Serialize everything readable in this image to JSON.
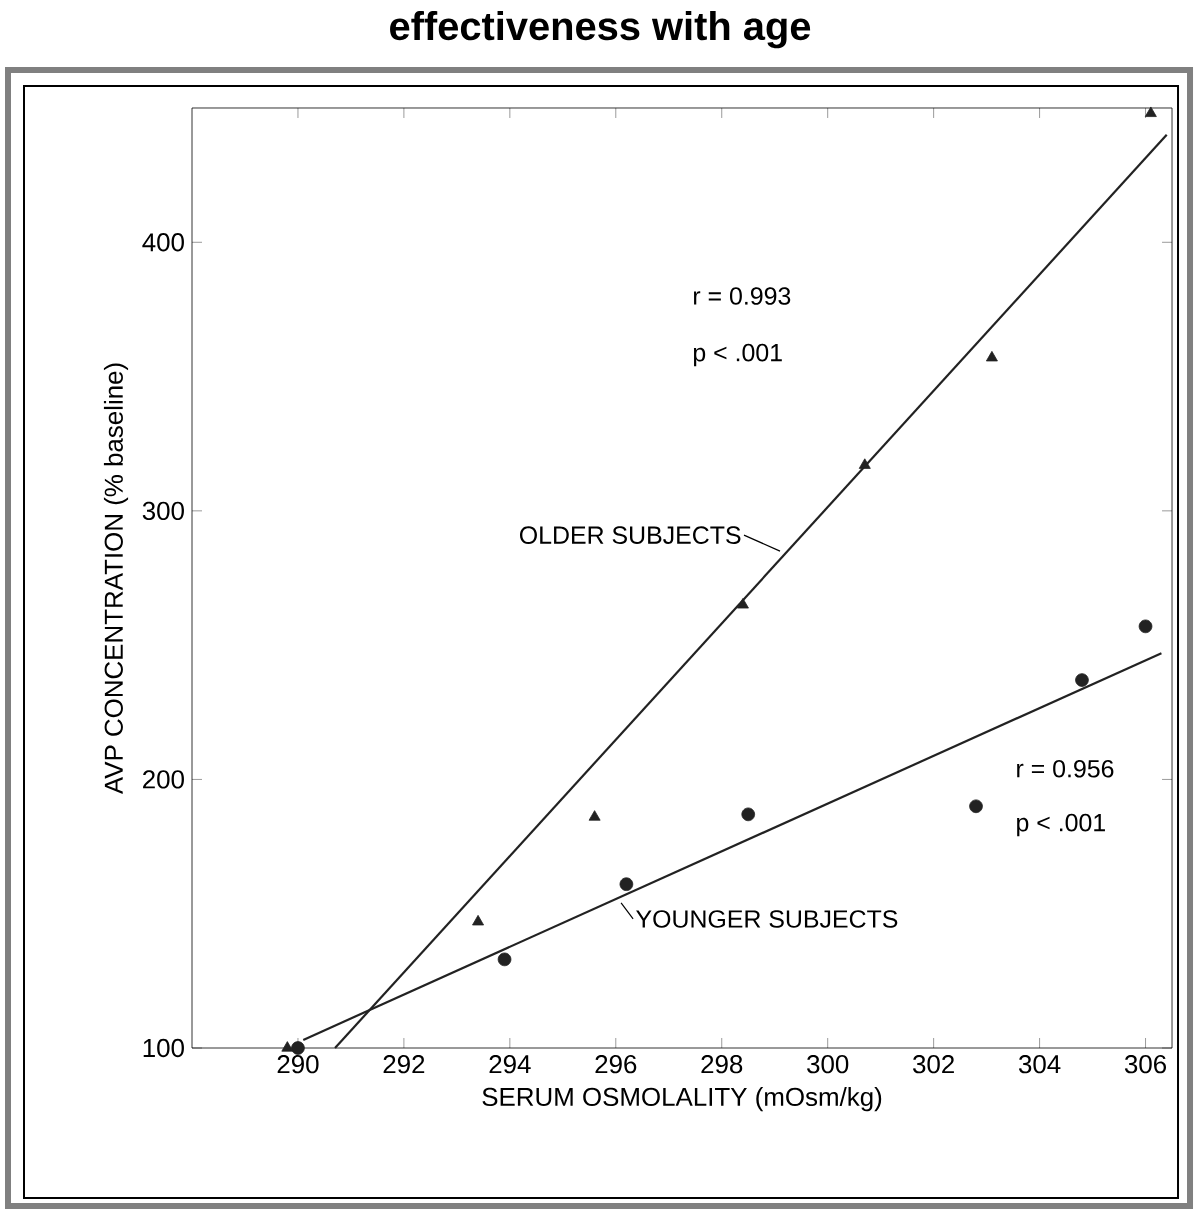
{
  "chart_data": {
    "type": "scatter",
    "title": "effectiveness with age",
    "xlabel": "SERUM OSMOLALITY (mOsm/kg)",
    "ylabel": "AVP CONCENTRATION (% baseline)",
    "xlim": [
      288,
      306.5
    ],
    "ylim": [
      100,
      450
    ],
    "xticks": [
      290,
      292,
      294,
      296,
      298,
      300,
      302,
      304,
      306
    ],
    "yticks": [
      100,
      200,
      300,
      400
    ],
    "grid": false,
    "series": [
      {
        "marker": "triangle",
        "color": "#222222",
        "x": [
          289.8,
          293.4,
          295.6,
          298.4,
          300.7,
          303.1,
          306.1
        ],
        "values": [
          100,
          147,
          186,
          265,
          317,
          357,
          448
        ]
      },
      {
        "marker": "circle",
        "color": "#222222",
        "x": [
          290.0,
          293.9,
          296.2,
          298.5,
          302.8,
          304.8,
          306.0
        ],
        "values": [
          100,
          133,
          161,
          187,
          190,
          237,
          257
        ]
      },
      {
        "type": "line",
        "marker": "none",
        "color": "#222222",
        "x": [
          290.7,
          306.4
        ],
        "values": [
          100,
          440
        ]
      },
      {
        "type": "line",
        "marker": "none",
        "color": "#222222",
        "x": [
          290.1,
          306.3
        ],
        "values": [
          103,
          247
        ]
      }
    ],
    "annotations": [
      "r = 0.993",
      "p  < .001",
      {
        "text": "OLDER SUBJECTS",
        "x": 299.1,
        "y": 285
      },
      "r = 0.956",
      "p  < .001",
      {
        "text": "YOUNGER SUBJECTS",
        "x": 296.1,
        "y": 154
      }
    ]
  }
}
